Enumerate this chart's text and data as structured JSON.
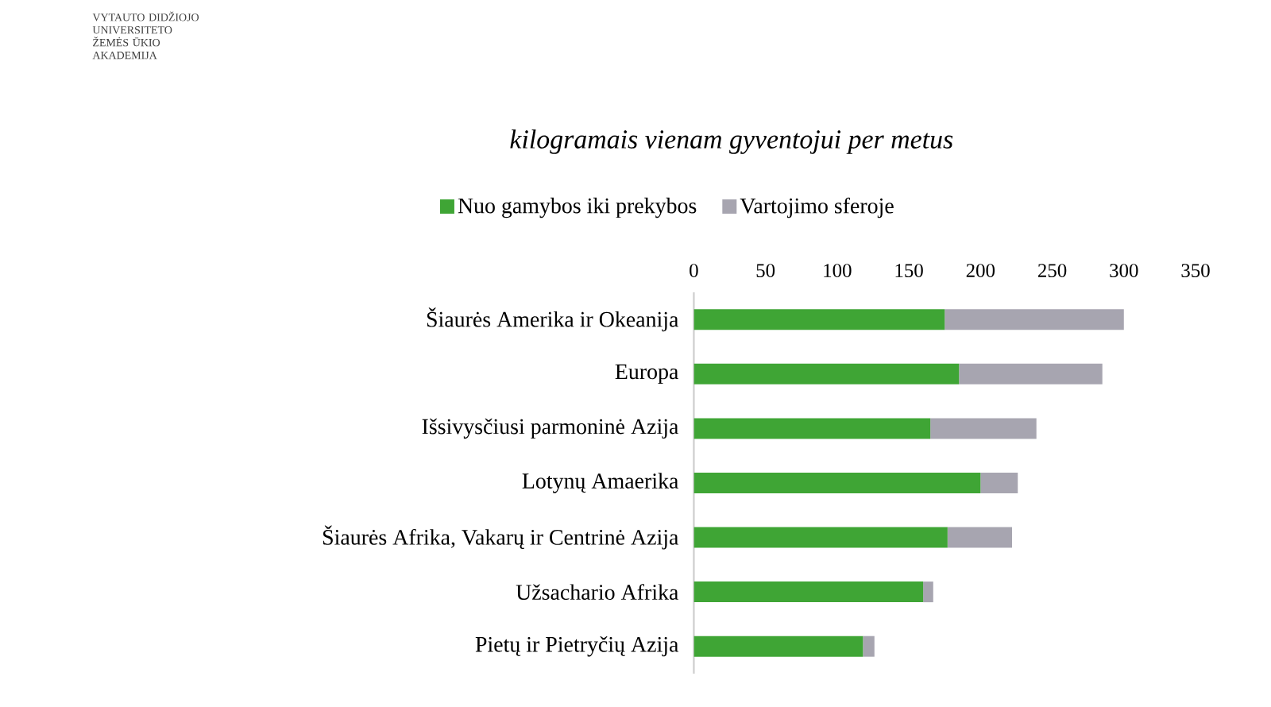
{
  "chart_data": {
    "type": "bar",
    "orientation": "horizontal",
    "stacked": true,
    "title": "*kilogramais vienam gyventojui per metus*",
    "categories": [
      "Šiaurės Amerika ir Okeanija",
      "Europa",
      "Išsivysčiusi parmoninė Azija",
      "Lotynų Amaerika",
      "Šiaurės Afrika, Vakarų ir Centrinė Azija",
      "Užsachario Afrika",
      "Pietų ir Pietryčių Azija"
    ],
    "series": [
      {
        "name": "Nuo gamybos iki prekybos",
        "color": "#3fa535",
        "values": [
          175,
          185,
          165,
          200,
          177,
          160,
          118
        ]
      },
      {
        "name": "Vartojimo sferoje",
        "color": "#a7a5b0",
        "values": [
          125,
          100,
          74,
          26,
          45,
          7,
          8
        ]
      }
    ],
    "xlim": [
      0,
      350
    ],
    "xticks": [
      0,
      50,
      100,
      150,
      200,
      250,
      300,
      350
    ],
    "legend": "top",
    "grid": false,
    "annotations": [
      "VYTAUTO DIDŽIOJO UNIVERSITETO ŽEMĖS ŪKIO AKADEMIJA"
    ]
  }
}
